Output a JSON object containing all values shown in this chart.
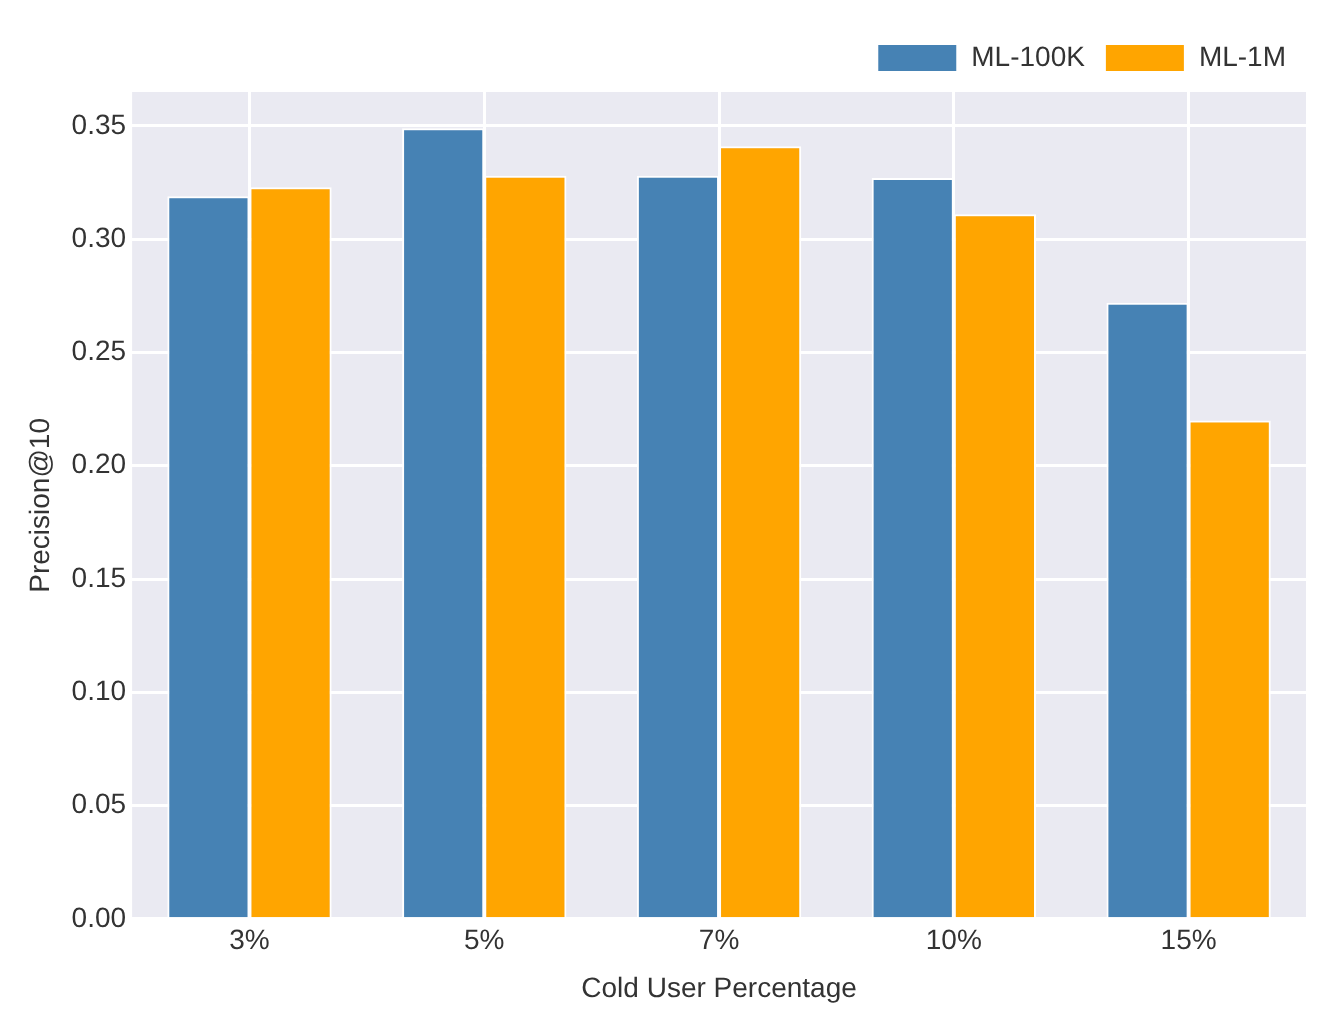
{
  "chart_data": {
    "type": "bar",
    "xlabel": "Cold User Percentage",
    "ylabel": "Precision@10",
    "categories": [
      "3%",
      "5%",
      "7%",
      "10%",
      "15%"
    ],
    "series": [
      {
        "name": "ML-100K",
        "color": "#4682b4",
        "values": [
          0.319,
          0.349,
          0.328,
          0.327,
          0.272
        ]
      },
      {
        "name": "ML-1M",
        "color": "#ffa500",
        "values": [
          0.323,
          0.328,
          0.341,
          0.311,
          0.22
        ]
      }
    ],
    "ylim": [
      0,
      0.365
    ],
    "yticks": [
      {
        "value": 0,
        "label": "0.00"
      },
      0.05,
      {
        "value": 0.1,
        "label": "0.10"
      },
      0.15,
      {
        "value": 0.2,
        "label": "0.20"
      },
      0.25,
      {
        "value": 0.3,
        "label": "0.30"
      },
      0.35
    ],
    "grid": true,
    "legend": "top right"
  }
}
